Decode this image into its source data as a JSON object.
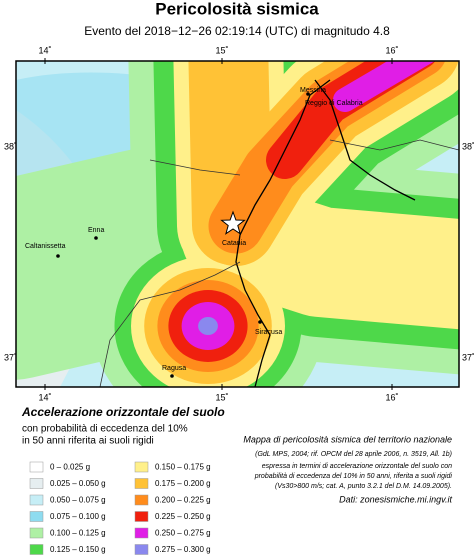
{
  "header": {
    "title": "Pericolosità sismica",
    "subtitle": "Evento del 2018−12−26 02:19:14 (UTC) di magnitudo 4.8"
  },
  "map": {
    "lon_labels": [
      "14˚",
      "15˚",
      "16˚"
    ],
    "lat_labels": [
      "38˚",
      "37˚"
    ],
    "places": [
      "Messina",
      "Reggio di Calabria",
      "Catania",
      "Enna",
      "Caltanissetta",
      "Siracusa",
      "Ragusa"
    ]
  },
  "legend": {
    "heading": "Accelerazione orizzontale del suolo",
    "lines": [
      "con probabilità di eccedenza del 10%",
      "in 50 anni riferita ai suoli rigidi"
    ],
    "items": [
      {
        "label": "0 –  0.025 g",
        "color": "#ffffff"
      },
      {
        "label": "0.025 – 0.050 g",
        "color": "#e6eef0"
      },
      {
        "label": "0.050 – 0.075 g",
        "color": "#c6eef6"
      },
      {
        "label": "0.075 – 0.100 g",
        "color": "#8edcf0"
      },
      {
        "label": "0.100 – 0.125 g",
        "color": "#aef0a4"
      },
      {
        "label": "0.125 – 0.150 g",
        "color": "#4ed84a"
      },
      {
        "label": "0.150 – 0.175 g",
        "color": "#fff08a"
      },
      {
        "label": "0.175 – 0.200 g",
        "color": "#ffc236"
      },
      {
        "label": "0.200 – 0.225 g",
        "color": "#ff8c1c"
      },
      {
        "label": "0.225 – 0.250 g",
        "color": "#f0200e"
      },
      {
        "label": "0.250 – 0.275 g",
        "color": "#e01ee6"
      },
      {
        "label": "0.275 – 0.300 g",
        "color": "#8a88ee"
      }
    ]
  },
  "notes": {
    "title": "Mappa di pericolosità sismica del territorio nazionale",
    "lines": [
      "(GdL MPS, 2004; rif. OPCM del 28 aprile 2006, n. 3519, All. 1b)",
      "espressa in termini di accelerazione orizzontale del suolo con",
      "probabilità di eccedenza del 10% in 50 anni, riferita a suoli rigidi",
      "(Vs30>800 m/s; cat. A, punto 3.2.1 del D.M. 14.09.2005)."
    ],
    "source": "Dati: zonesismiche.mi.ingv.it"
  }
}
